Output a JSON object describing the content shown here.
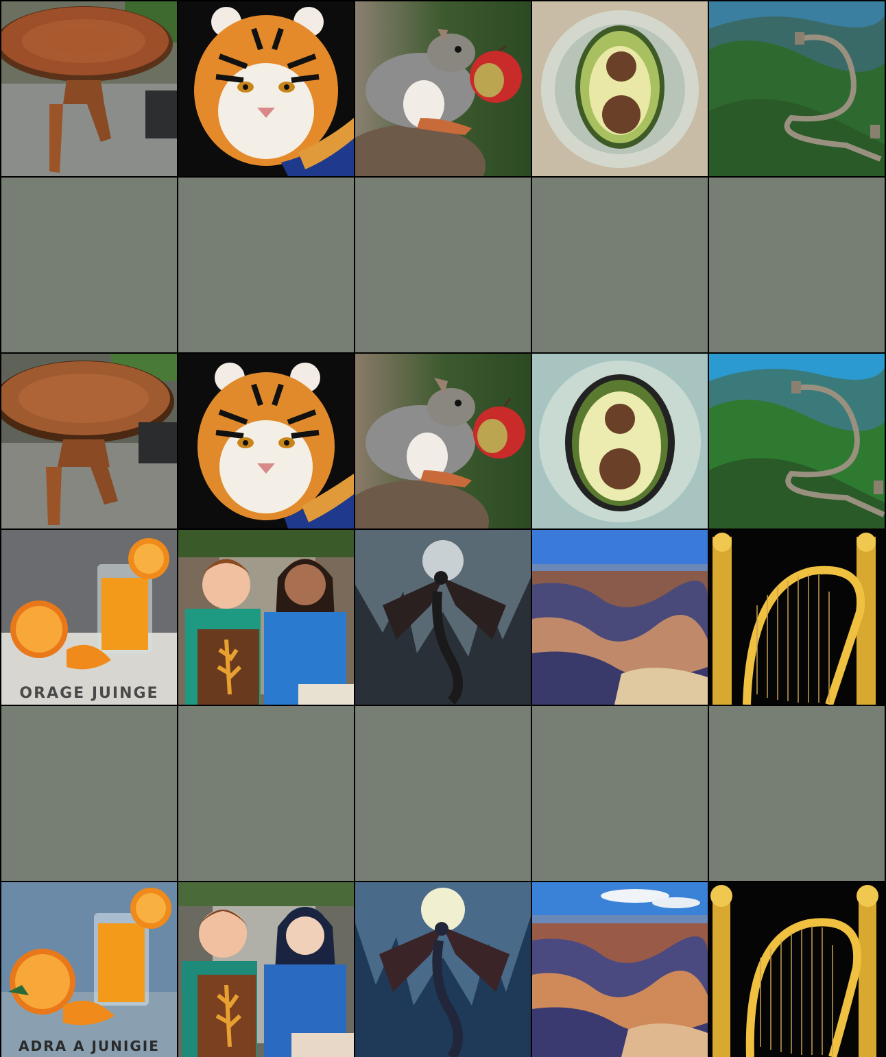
{
  "grid": {
    "rows": [
      {
        "cells": [
          {
            "subject": "wood-slab-table"
          },
          {
            "subject": "tiger-portrait"
          },
          {
            "subject": "squirrel-with-apple"
          },
          {
            "subject": "avocado-half"
          },
          {
            "subject": "great-wall"
          }
        ]
      },
      {
        "cells": [
          {
            "subject": "empty"
          },
          {
            "subject": "empty"
          },
          {
            "subject": "empty"
          },
          {
            "subject": "empty"
          },
          {
            "subject": "empty"
          }
        ]
      },
      {
        "cells": [
          {
            "subject": "wood-slab-table"
          },
          {
            "subject": "tiger-portrait"
          },
          {
            "subject": "squirrel-with-apple"
          },
          {
            "subject": "avocado-half"
          },
          {
            "subject": "great-wall"
          }
        ]
      },
      {
        "cells": [
          {
            "subject": "orange-juice-poster"
          },
          {
            "subject": "two-kids-with-art"
          },
          {
            "subject": "dragon-in-mountains"
          },
          {
            "subject": "grand-canyon"
          },
          {
            "subject": "golden-harp"
          }
        ]
      },
      {
        "cells": [
          {
            "subject": "empty"
          },
          {
            "subject": "empty"
          },
          {
            "subject": "empty"
          },
          {
            "subject": "empty"
          },
          {
            "subject": "empty"
          }
        ]
      },
      {
        "cells": [
          {
            "subject": "orange-juice-poster"
          },
          {
            "subject": "two-kids-with-art"
          },
          {
            "subject": "dragon-in-mountains"
          },
          {
            "subject": "grand-canyon"
          },
          {
            "subject": "golden-harp"
          }
        ]
      }
    ]
  },
  "captions": {
    "orange_juice_top": "ORAGE JUINGE",
    "orange_juice_bottom": "ADRA A JUNIGIE"
  },
  "colors": {
    "background": "#000000",
    "empty_cell": "#777f75"
  }
}
